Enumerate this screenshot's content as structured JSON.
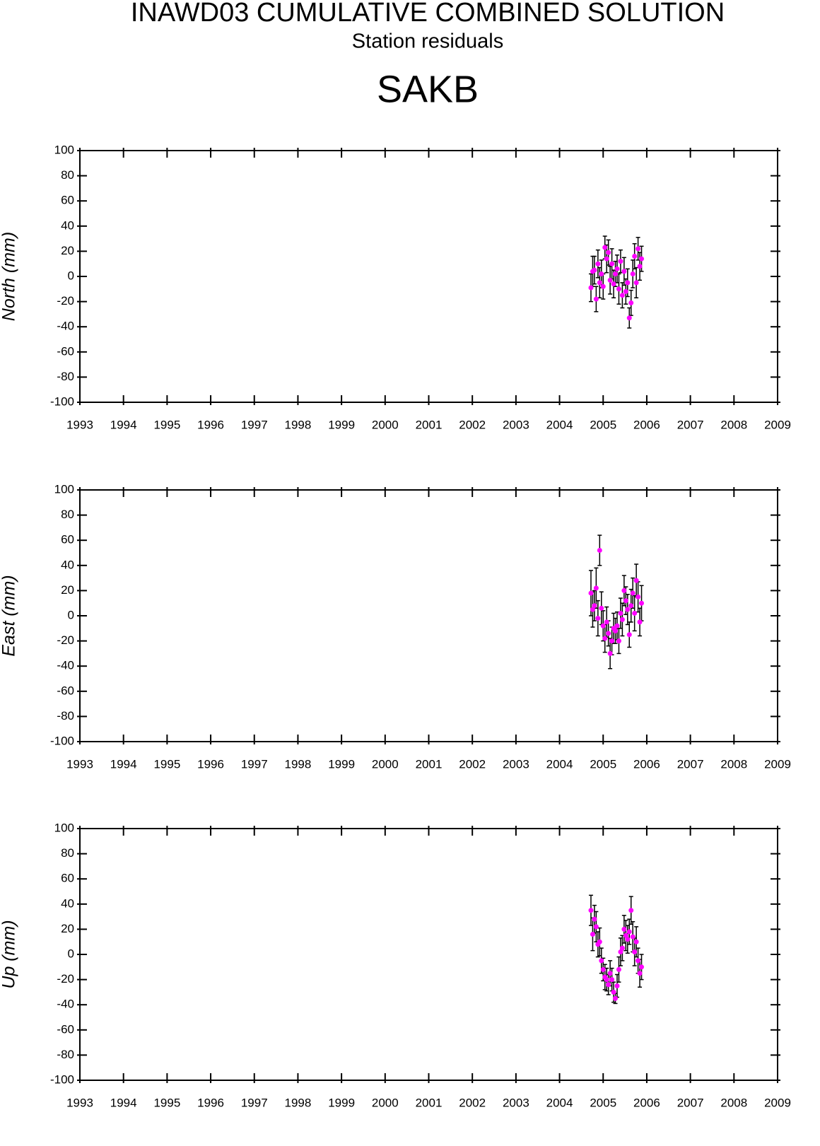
{
  "title": "INAWD03 CUMULATIVE COMBINED SOLUTION",
  "subtitle": "Station residuals",
  "station": "SAKB",
  "chart_data": [
    {
      "type": "scatter",
      "y_label": "North (mm)",
      "x": [
        2004.72,
        2004.76,
        2004.8,
        2004.84,
        2004.88,
        2004.92,
        2004.96,
        2005.0,
        2005.04,
        2005.08,
        2005.12,
        2005.16,
        2005.2,
        2005.24,
        2005.28,
        2005.32,
        2005.36,
        2005.4,
        2005.44,
        2005.48,
        2005.52,
        2005.56,
        2005.6,
        2005.64,
        2005.68,
        2005.72,
        2005.76,
        2005.8,
        2005.84,
        2005.88
      ],
      "values": [
        -9,
        4,
        5,
        -18,
        10,
        -5,
        2,
        -8,
        23,
        14,
        19,
        -3,
        10,
        -6,
        2,
        6,
        -10,
        12,
        -15,
        4,
        -12,
        -5,
        -33,
        -21,
        2,
        16,
        -5,
        22,
        8,
        14
      ],
      "errors": [
        11,
        12,
        11,
        10,
        11,
        12,
        11,
        10,
        9,
        11,
        10,
        11,
        12,
        11,
        10,
        11,
        12,
        9,
        10,
        11,
        10,
        11,
        8,
        10,
        11,
        10,
        12,
        9,
        11,
        10
      ],
      "color": "#ff00ff",
      "error_color": "#000000",
      "xlim": [
        1993,
        2009
      ],
      "xticks": [
        1993,
        1994,
        1995,
        1996,
        1997,
        1998,
        1999,
        2000,
        2001,
        2002,
        2003,
        2004,
        2005,
        2006,
        2007,
        2008,
        2009
      ],
      "ylim": [
        -100,
        100
      ],
      "yticks": [
        -100,
        -80,
        -60,
        -40,
        -20,
        0,
        20,
        40,
        60,
        80,
        100
      ]
    },
    {
      "type": "scatter",
      "y_label": "East (mm)",
      "x": [
        2004.72,
        2004.76,
        2004.8,
        2004.84,
        2004.88,
        2004.92,
        2004.96,
        2005.0,
        2005.04,
        2005.08,
        2005.12,
        2005.16,
        2005.2,
        2005.24,
        2005.28,
        2005.32,
        2005.36,
        2005.4,
        2005.44,
        2005.48,
        2005.52,
        2005.56,
        2005.6,
        2005.64,
        2005.68,
        2005.72,
        2005.76,
        2005.8,
        2005.84,
        2005.88
      ],
      "values": [
        18,
        5,
        8,
        22,
        -2,
        52,
        6,
        -8,
        -18,
        -5,
        -14,
        -30,
        -20,
        -10,
        -12,
        -8,
        -20,
        2,
        -3,
        20,
        12,
        5,
        -15,
        8,
        18,
        2,
        28,
        15,
        -5,
        10
      ],
      "errors": [
        18,
        14,
        12,
        16,
        14,
        12,
        13,
        12,
        11,
        12,
        10,
        12,
        11,
        12,
        10,
        11,
        10,
        12,
        13,
        12,
        11,
        12,
        10,
        13,
        12,
        14,
        13,
        12,
        11,
        14
      ],
      "color": "#ff00ff",
      "error_color": "#000000",
      "xlim": [
        1993,
        2009
      ],
      "xticks": [
        1993,
        1994,
        1995,
        1996,
        1997,
        1998,
        1999,
        2000,
        2001,
        2002,
        2003,
        2004,
        2005,
        2006,
        2007,
        2008,
        2009
      ],
      "ylim": [
        -100,
        100
      ],
      "yticks": [
        -100,
        -80,
        -60,
        -40,
        -20,
        0,
        20,
        40,
        60,
        80,
        100
      ]
    },
    {
      "type": "scatter",
      "y_label": "Up (mm)",
      "x": [
        2004.72,
        2004.76,
        2004.8,
        2004.84,
        2004.88,
        2004.92,
        2004.96,
        2005.0,
        2005.04,
        2005.08,
        2005.12,
        2005.16,
        2005.2,
        2005.24,
        2005.28,
        2005.32,
        2005.36,
        2005.4,
        2005.44,
        2005.48,
        2005.52,
        2005.56,
        2005.6,
        2005.64,
        2005.68,
        2005.72,
        2005.76,
        2005.8,
        2005.84,
        2005.88
      ],
      "values": [
        35,
        16,
        28,
        22,
        8,
        10,
        -5,
        -12,
        -18,
        -20,
        -24,
        -15,
        -20,
        -30,
        -35,
        -25,
        -12,
        2,
        5,
        20,
        15,
        12,
        18,
        35,
        14,
        2,
        10,
        -5,
        -15,
        -10
      ],
      "errors": [
        12,
        13,
        11,
        12,
        10,
        11,
        10,
        9,
        10,
        9,
        8,
        10,
        9,
        8,
        4,
        9,
        10,
        11,
        10,
        11,
        12,
        11,
        10,
        11,
        12,
        11,
        12,
        10,
        11,
        10
      ],
      "color": "#ff00ff",
      "error_color": "#000000",
      "xlim": [
        1993,
        2009
      ],
      "xticks": [
        1993,
        1994,
        1995,
        1996,
        1997,
        1998,
        1999,
        2000,
        2001,
        2002,
        2003,
        2004,
        2005,
        2006,
        2007,
        2008,
        2009
      ],
      "ylim": [
        -100,
        100
      ],
      "yticks": [
        -100,
        -80,
        -60,
        -40,
        -20,
        0,
        20,
        40,
        60,
        80,
        100
      ]
    }
  ]
}
